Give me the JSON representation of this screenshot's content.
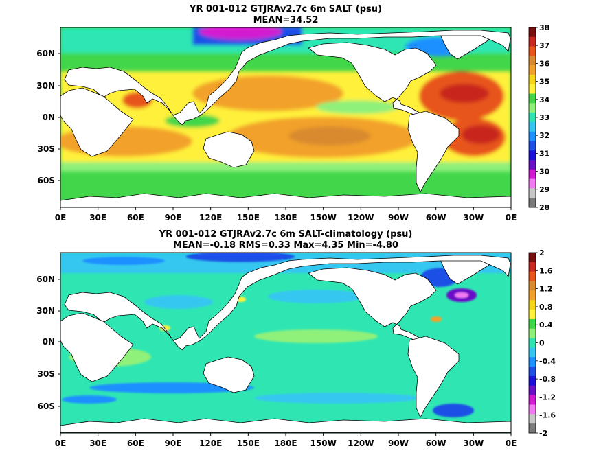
{
  "maps": [
    {
      "title": "YR 001-012 GTJRAv2.7c 6m SALT (psu)",
      "subtitle": "MEAN=34.52",
      "lon_labels": [
        "0E",
        "30E",
        "60E",
        "90E",
        "120E",
        "150E",
        "180E",
        "150W",
        "120W",
        "90W",
        "60W",
        "30W",
        "0E"
      ],
      "lat_labels": [
        "60N",
        "30N",
        "0N",
        "30S",
        "60S"
      ],
      "colorbar": {
        "labels": [
          "38",
          "37",
          "36",
          "35",
          "34",
          "33",
          "32",
          "31",
          "30",
          "29",
          "28"
        ],
        "colors": [
          "#7a0e0e",
          "#c8281e",
          "#e8541a",
          "#d98a2e",
          "#f2a22c",
          "#f7d51a",
          "#fff13a",
          "#42d64a",
          "#8ff07a",
          "#2fe6b3",
          "#36c7f0",
          "#1e90ff",
          "#1e50e6",
          "#1a10d8",
          "#6a10c8",
          "#d21ad2",
          "#f27af2",
          "#c8c8c8",
          "#7a7a7a"
        ]
      }
    },
    {
      "title": "YR 001-012 GTJRAv2.7c 6m SALT-climatology (psu)",
      "subtitle": "MEAN=-0.18   RMS=0.33   Max=4.35   Min=-4.80",
      "lon_labels": [
        "0E",
        "30E",
        "60E",
        "90E",
        "120E",
        "150E",
        "180E",
        "150W",
        "120W",
        "90W",
        "60W",
        "30W",
        "0E"
      ],
      "lat_labels": [
        "60N",
        "30N",
        "0N",
        "30S",
        "60S"
      ],
      "colorbar": {
        "labels": [
          "2",
          "1.6",
          "1.2",
          "0.8",
          "0.4",
          "0",
          "-0.4",
          "-0.8",
          "-1.2",
          "-1.6",
          "-2"
        ],
        "colors": [
          "#7a0e0e",
          "#c8281e",
          "#e8541a",
          "#d98a2e",
          "#f2a22c",
          "#f7d51a",
          "#fff13a",
          "#42d64a",
          "#8ff07a",
          "#2fe6b3",
          "#36c7f0",
          "#1e90ff",
          "#1e50e6",
          "#1a10d8",
          "#6a10c8",
          "#d21ad2",
          "#f27af2",
          "#c8c8c8",
          "#7a7a7a"
        ]
      }
    }
  ]
}
